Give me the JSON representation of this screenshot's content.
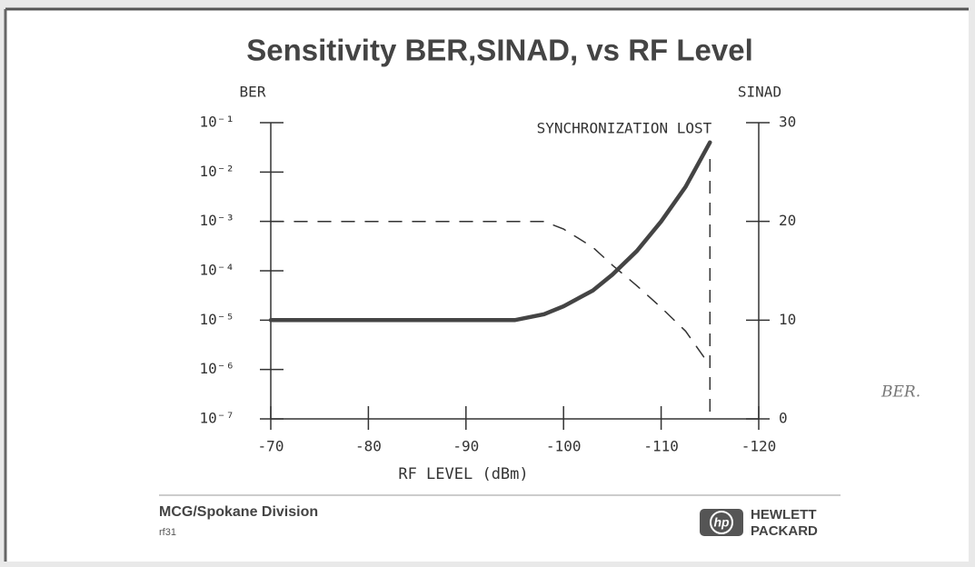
{
  "chart_data": {
    "type": "line",
    "title": "Sensitivity BER,SINAD, vs RF Level",
    "xlabel": "RF LEVEL (dBm)",
    "ylabel": "BER",
    "y2label": "SINAD",
    "x": [
      -70,
      -75,
      -80,
      -85,
      -90,
      -95,
      -98,
      -100,
      -103,
      -105,
      -107.5,
      -110,
      -112.5,
      -115
    ],
    "xlim": [
      -70,
      -120
    ],
    "xticks": [
      -70,
      -80,
      -90,
      -100,
      -110,
      -120
    ],
    "ylim": [
      1e-07,
      0.1
    ],
    "yscale": "log",
    "yticks": [
      {
        "value": 1e-07,
        "label": "10⁻⁷"
      },
      {
        "value": 1e-06,
        "label": "10⁻⁶"
      },
      {
        "value": 1e-05,
        "label": "10⁻⁵"
      },
      {
        "value": 0.0001,
        "label": "10⁻⁴"
      },
      {
        "value": 0.001,
        "label": "10⁻³"
      },
      {
        "value": 0.01,
        "label": "10⁻²"
      },
      {
        "value": 0.1,
        "label": "10⁻¹"
      }
    ],
    "y2lim": [
      0,
      30
    ],
    "y2ticks": [
      0,
      10,
      20,
      30
    ],
    "series": [
      {
        "name": "BER",
        "color": "#333333",
        "style": "dashed",
        "values": [
          0.001,
          0.001,
          0.001,
          0.001,
          0.001,
          0.001,
          0.001,
          0.0007,
          0.0003,
          0.00013,
          5e-05,
          1.8e-05,
          6e-06,
          1.2e-06
        ]
      },
      {
        "name": "SINAD",
        "color": "#444444",
        "style": "solid",
        "axis": "y2",
        "values": [
          10,
          10,
          10,
          10,
          10,
          10,
          10.6,
          11.4,
          13,
          14.6,
          17,
          20,
          23.5,
          28
        ]
      }
    ],
    "annotations": [
      {
        "text": "SYNCHRONIZATION LOST",
        "x": -115
      }
    ]
  },
  "footer": {
    "division": "MCG/Spokane Division",
    "code": "rf31",
    "logo": [
      "HEWLETT",
      "PACKARD"
    ],
    "note": "BER."
  }
}
